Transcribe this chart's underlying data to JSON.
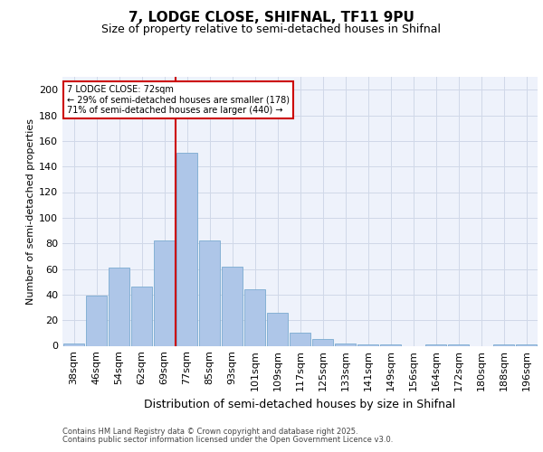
{
  "title": "7, LODGE CLOSE, SHIFNAL, TF11 9PU",
  "subtitle": "Size of property relative to semi-detached houses in Shifnal",
  "xlabel": "Distribution of semi-detached houses by size in Shifnal",
  "ylabel": "Number of semi-detached properties",
  "categories": [
    "38sqm",
    "46sqm",
    "54sqm",
    "62sqm",
    "69sqm",
    "77sqm",
    "85sqm",
    "93sqm",
    "101sqm",
    "109sqm",
    "117sqm",
    "125sqm",
    "133sqm",
    "141sqm",
    "149sqm",
    "156sqm",
    "164sqm",
    "172sqm",
    "180sqm",
    "188sqm",
    "196sqm"
  ],
  "values": [
    2,
    39,
    61,
    46,
    82,
    151,
    82,
    62,
    44,
    26,
    10,
    5,
    2,
    1,
    1,
    0,
    1,
    1,
    0,
    1,
    1
  ],
  "bar_color": "#aec6e8",
  "bar_edge_color": "#7aaad0",
  "vline_bin_index": 4,
  "vline_color": "#cc0000",
  "annotation_line1": "7 LODGE CLOSE: 72sqm",
  "annotation_line2": "← 29% of semi-detached houses are smaller (178)",
  "annotation_line3": "71% of semi-detached houses are larger (440) →",
  "annotation_box_color": "#cc0000",
  "ylim": [
    0,
    210
  ],
  "yticks": [
    0,
    20,
    40,
    60,
    80,
    100,
    120,
    140,
    160,
    180,
    200
  ],
  "grid_color": "#d0d8e8",
  "background_color": "#eef2fb",
  "footer_line1": "Contains HM Land Registry data © Crown copyright and database right 2025.",
  "footer_line2": "Contains public sector information licensed under the Open Government Licence v3.0.",
  "title_fontsize": 11,
  "subtitle_fontsize": 9,
  "bar_fontsize": 8,
  "ylabel_fontsize": 8,
  "xlabel_fontsize": 9,
  "footer_fontsize": 6,
  "annot_fontsize": 7
}
